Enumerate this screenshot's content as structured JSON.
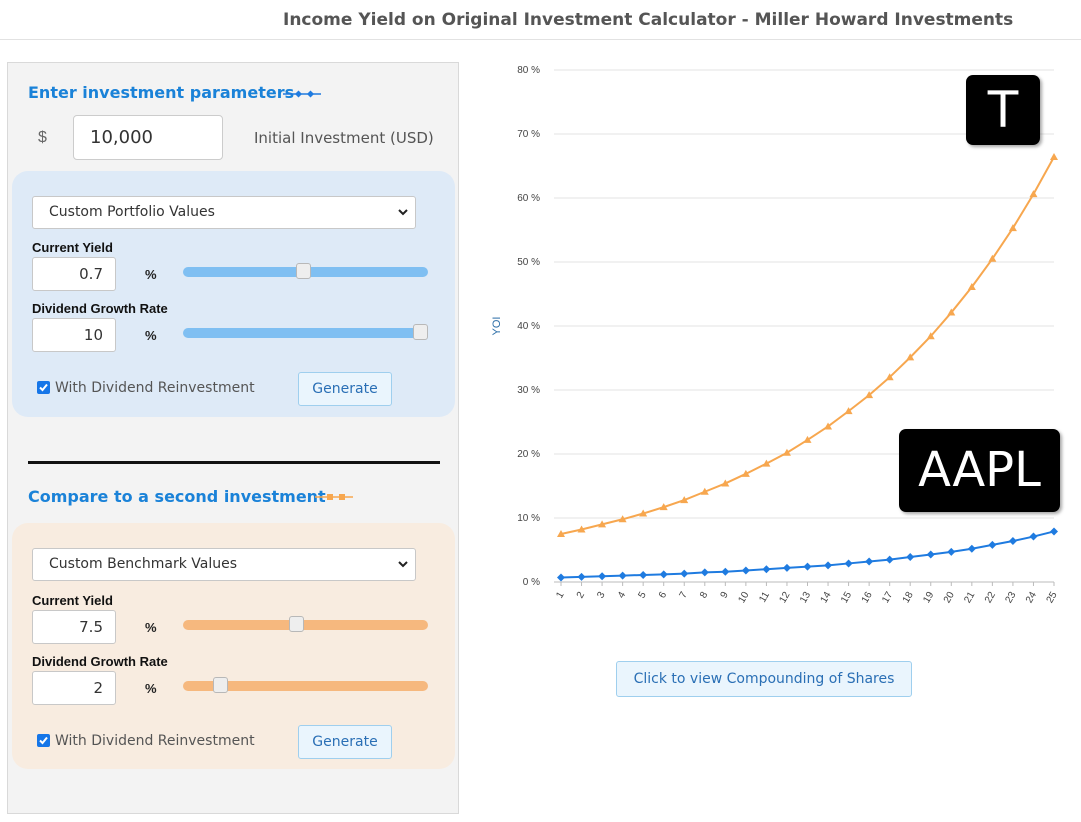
{
  "page": {
    "title": "Income Yield on Original Investment Calculator - Miller Howard Investments"
  },
  "investment": {
    "heading": "Enter investment parameters",
    "currency_symbol": "$",
    "amount": "10,000",
    "amount_label": "Initial Investment (USD)"
  },
  "first": {
    "select_value": "Custom Portfolio Values",
    "yield_label": "Current Yield",
    "yield_value": "0.7",
    "yield_slider": 0.49,
    "growth_label": "Dividend Growth Rate",
    "growth_value": "10",
    "growth_slider": 1.0,
    "pct": "%",
    "reinvest_label": "With Dividend Reinvestment",
    "reinvest_checked": true,
    "generate_label": "Generate"
  },
  "second": {
    "heading": "Compare to a second investment",
    "select_value": "Custom Benchmark Values",
    "yield_label": "Current Yield",
    "yield_value": "7.5",
    "yield_slider": 0.46,
    "growth_label": "Dividend Growth Rate",
    "growth_value": "2",
    "growth_slider": 0.13,
    "pct": "%",
    "reinvest_label": "With Dividend Reinvestment",
    "reinvest_checked": true,
    "generate_label": "Generate"
  },
  "colors": {
    "series_blue": "#1f7be0",
    "series_orange": "#f7a74f"
  },
  "chart_data": {
    "type": "line",
    "ylabel": "YOI",
    "ylim": [
      0,
      80
    ],
    "yticks": [
      "0 %",
      "10 %",
      "20 %",
      "30 %",
      "40 %",
      "50 %",
      "60 %",
      "70 %",
      "80 %"
    ],
    "x": [
      1,
      2,
      3,
      4,
      5,
      6,
      7,
      8,
      9,
      10,
      11,
      12,
      13,
      14,
      15,
      16,
      17,
      18,
      19,
      20,
      21,
      22,
      23,
      24,
      25
    ],
    "grid": true,
    "series": [
      {
        "color": "orange",
        "marker": "triangle",
        "values": [
          7.5,
          8.2,
          9.0,
          9.8,
          10.7,
          11.7,
          12.8,
          14.1,
          15.4,
          16.9,
          18.5,
          20.2,
          22.2,
          24.3,
          26.7,
          29.2,
          32.0,
          35.1,
          38.4,
          42.1,
          46.1,
          50.5,
          55.3,
          60.6,
          66.4
        ]
      },
      {
        "color": "blue",
        "marker": "diamond",
        "values": [
          0.7,
          0.8,
          0.9,
          1.0,
          1.1,
          1.2,
          1.3,
          1.5,
          1.6,
          1.8,
          2.0,
          2.2,
          2.4,
          2.6,
          2.9,
          3.2,
          3.5,
          3.9,
          4.3,
          4.7,
          5.2,
          5.8,
          6.4,
          7.1,
          7.9
        ]
      }
    ]
  },
  "compounding_button": "Click to view Compounding of Shares",
  "labels": {
    "top": "T",
    "bottom": "AAPL"
  }
}
